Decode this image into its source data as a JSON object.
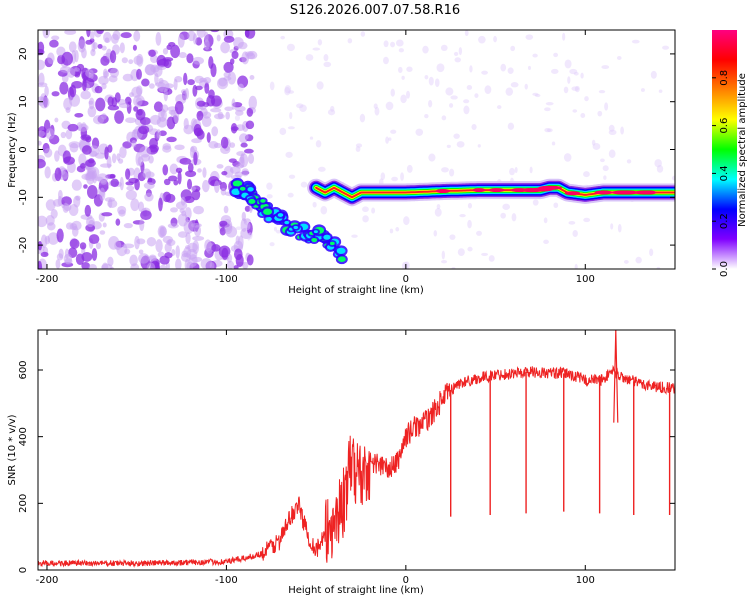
{
  "title": "S126.2026.007.07.58.R16",
  "chart_data": [
    {
      "type": "heatmap",
      "name": "spectrogram",
      "xlabel": "Height of straight line (km)",
      "ylabel": "Frequency (Hz)",
      "xlim": [
        -205,
        150
      ],
      "ylim": [
        -25,
        25
      ],
      "xticks": [
        -200,
        -100,
        0,
        100
      ],
      "yticks": [
        -20,
        -10,
        0,
        10,
        20
      ],
      "colorbar": {
        "label": "Normalized spectral amplitude",
        "range": [
          0,
          1
        ],
        "ticks": [
          "0.0",
          "0.2",
          "0.4",
          "0.6",
          "0.8"
        ],
        "colors": [
          "#ffffff",
          "#8000ff",
          "#0000ff",
          "#00ffff",
          "#00ff00",
          "#ffff00",
          "#ff8000",
          "#ff0000",
          "#ff0080"
        ]
      },
      "noise_region": {
        "x_from": -205,
        "x_to": -95,
        "freq_range": [
          -25,
          25
        ],
        "amplitude": "low (0.05-0.2)"
      },
      "descending_track": {
        "x": [
          -95,
          -90,
          -85,
          -80,
          -75,
          -70,
          -65,
          -60,
          -55,
          -50,
          -45,
          -40,
          -35
        ],
        "freq": [
          -8,
          -8.5,
          -10,
          -12,
          -14,
          -15,
          -16,
          -17,
          -17.5,
          -18,
          -19,
          -20,
          -22
        ]
      },
      "carrier_line": {
        "x": [
          -50,
          -45,
          -40,
          -35,
          -30,
          -25,
          -20,
          -10,
          0,
          20,
          40,
          60,
          75,
          80,
          85,
          90,
          100,
          110,
          130,
          150
        ],
        "freq": [
          -8,
          -9,
          -8,
          -9,
          -10,
          -9,
          -9,
          -9,
          -9,
          -8.7,
          -8.5,
          -8.5,
          -8.5,
          -8,
          -8,
          -9,
          -9.5,
          -9,
          -9,
          -9
        ],
        "peak_amplitude": 1.0
      }
    },
    {
      "type": "line",
      "name": "snr",
      "xlabel": "Height of straight line (km)",
      "ylabel": "SNR (10 * v/v)",
      "xlim": [
        -205,
        150
      ],
      "ylim": [
        0,
        720
      ],
      "xticks": [
        -200,
        -100,
        0,
        100
      ],
      "yticks": [
        0,
        200,
        400,
        600
      ],
      "color": "#ee2222",
      "series": [
        {
          "name": "SNR",
          "x": [
            -205,
            -150,
            -100,
            -90,
            -80,
            -70,
            -65,
            -60,
            -55,
            -50,
            -45,
            -40,
            -35,
            -30,
            -25,
            -20,
            -15,
            -10,
            -5,
            0,
            5,
            10,
            15,
            20,
            25,
            30,
            40,
            50,
            60,
            70,
            80,
            90,
            100,
            110,
            115,
            120,
            130,
            140,
            150
          ],
          "values": [
            20,
            20,
            25,
            35,
            50,
            90,
            150,
            200,
            110,
            60,
            100,
            150,
            200,
            320,
            280,
            320,
            320,
            300,
            320,
            400,
            430,
            440,
            470,
            510,
            540,
            560,
            575,
            585,
            590,
            595,
            590,
            590,
            570,
            570,
            600,
            580,
            560,
            550,
            545
          ]
        }
      ],
      "dropouts": [
        {
          "x": 25,
          "y": 160
        },
        {
          "x": 47,
          "y": 165
        },
        {
          "x": 67,
          "y": 170
        },
        {
          "x": 88,
          "y": 175
        },
        {
          "x": 108,
          "y": 170
        },
        {
          "x": 127,
          "y": 165
        },
        {
          "x": 147,
          "y": 165
        }
      ],
      "spikes": [
        {
          "x": 117,
          "y": 720
        }
      ]
    }
  ]
}
